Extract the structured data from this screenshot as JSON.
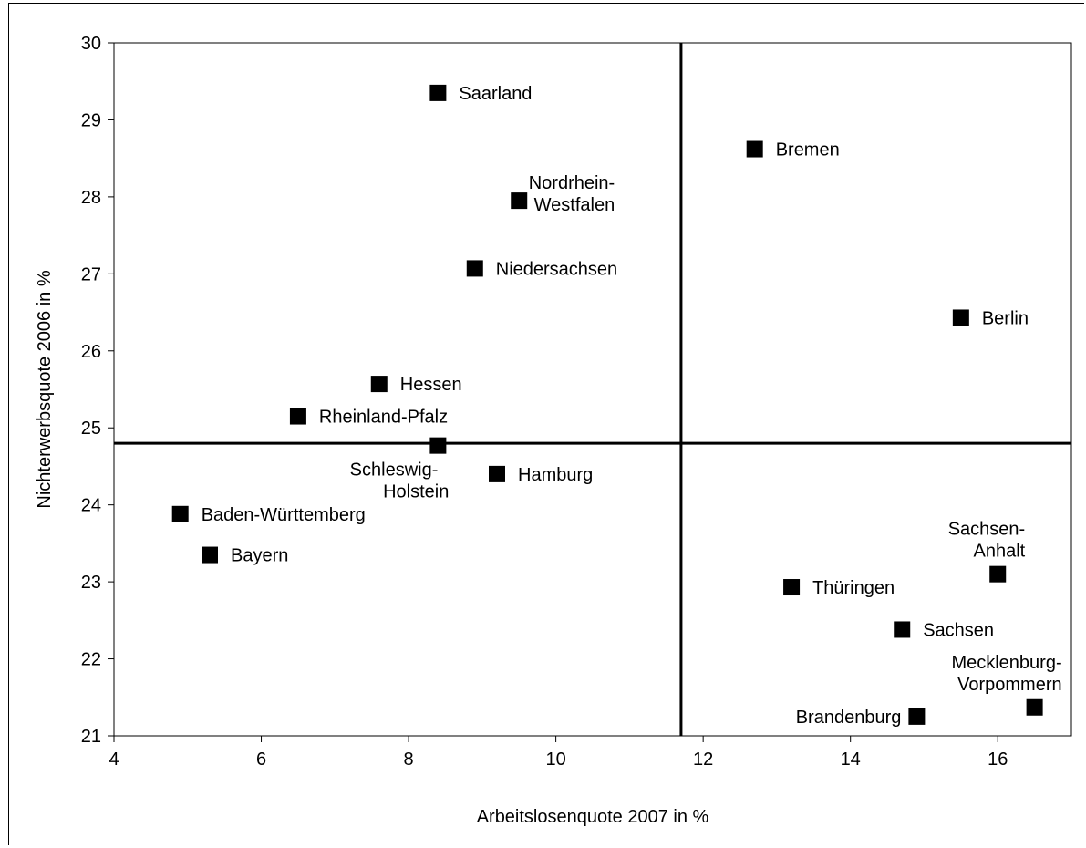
{
  "chart_data": {
    "type": "scatter",
    "title": "",
    "xlabel": "Arbeitslosenquote 2007 in %",
    "ylabel": "Nichterwerbsquote 2006 in %",
    "xlim": [
      4,
      17
    ],
    "ylim": [
      21,
      30
    ],
    "xticks": [
      4,
      6,
      8,
      10,
      12,
      14,
      16
    ],
    "yticks": [
      21,
      22,
      23,
      24,
      25,
      26,
      27,
      28,
      29,
      30
    ],
    "grid": false,
    "reference_lines": {
      "x": 11.7,
      "y": 24.8
    },
    "marker": "square",
    "marker_color": "#000000",
    "points": [
      {
        "label": [
          "Saarland"
        ],
        "x": 8.4,
        "y": 29.35,
        "anchor": "right"
      },
      {
        "label": [
          "Bremen"
        ],
        "x": 12.7,
        "y": 28.62,
        "anchor": "right"
      },
      {
        "label": [
          "Nordrhein-",
          "Westfalen"
        ],
        "x": 9.5,
        "y": 27.95,
        "anchor": "above-right"
      },
      {
        "label": [
          "Niedersachsen"
        ],
        "x": 8.9,
        "y": 27.07,
        "anchor": "right"
      },
      {
        "label": [
          "Berlin"
        ],
        "x": 15.5,
        "y": 26.43,
        "anchor": "right"
      },
      {
        "label": [
          "Hessen"
        ],
        "x": 7.6,
        "y": 25.57,
        "anchor": "right"
      },
      {
        "label": [
          "Rheinland-Pfalz"
        ],
        "x": 6.5,
        "y": 25.15,
        "anchor": "right"
      },
      {
        "label": [
          "Schleswig-",
          "Holstein"
        ],
        "x": 8.4,
        "y": 24.77,
        "anchor": "below"
      },
      {
        "label": [
          "Hamburg"
        ],
        "x": 9.2,
        "y": 24.4,
        "anchor": "right"
      },
      {
        "label": [
          "Baden-Württemberg"
        ],
        "x": 4.9,
        "y": 23.88,
        "anchor": "right"
      },
      {
        "label": [
          "Bayern"
        ],
        "x": 5.3,
        "y": 23.35,
        "anchor": "right"
      },
      {
        "label": [
          "Sachsen-",
          "Anhalt"
        ],
        "x": 16.0,
        "y": 23.1,
        "anchor": "above-left"
      },
      {
        "label": [
          "Thüringen"
        ],
        "x": 13.2,
        "y": 22.93,
        "anchor": "right"
      },
      {
        "label": [
          "Sachsen"
        ],
        "x": 14.7,
        "y": 22.38,
        "anchor": "right"
      },
      {
        "label": [
          "Mecklenburg-",
          "Vorpommern"
        ],
        "x": 16.5,
        "y": 21.37,
        "anchor": "above-left"
      },
      {
        "label": [
          "Brandenburg"
        ],
        "x": 14.9,
        "y": 21.25,
        "anchor": "left"
      }
    ]
  }
}
